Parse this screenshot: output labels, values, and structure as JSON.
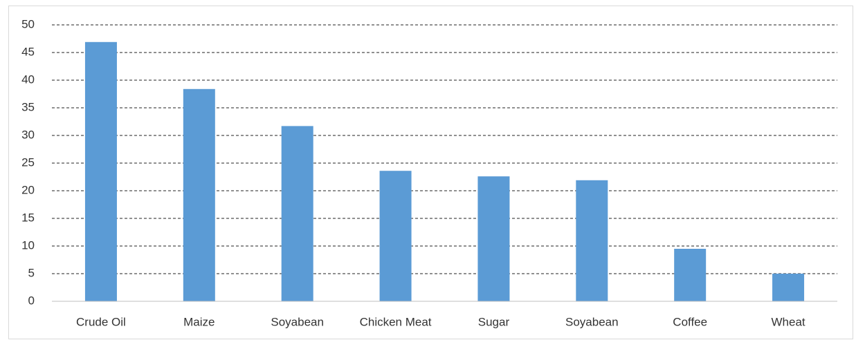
{
  "chart_data": {
    "type": "bar",
    "categories": [
      "Crude Oil",
      "Maize",
      "Soyabean",
      "Chicken Meat",
      "Sugar",
      "Soyabean",
      "Coffee",
      "Wheat"
    ],
    "values": [
      46.9,
      38.4,
      31.7,
      23.6,
      22.6,
      21.9,
      9.5,
      5.0
    ],
    "color": "#5b9bd5",
    "ylim": [
      0,
      50
    ],
    "yticks": [
      0,
      5,
      10,
      15,
      20,
      25,
      30,
      35,
      40,
      45,
      50
    ],
    "grid": true
  }
}
